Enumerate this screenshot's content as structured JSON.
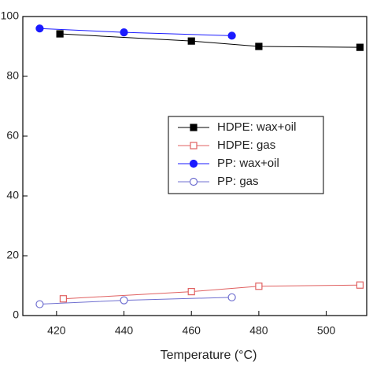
{
  "chart_data": {
    "type": "line",
    "x_label": "Temperature (°C)",
    "xlim": [
      410,
      512
    ],
    "xticks": [
      420,
      440,
      460,
      480,
      500
    ],
    "ylim": [
      0,
      100
    ],
    "yticks": [
      0,
      20,
      40,
      60,
      80,
      100
    ],
    "legend": "right",
    "series": [
      {
        "name": "HDPE: wax+oil",
        "color": "#000000",
        "marker": "filled-square",
        "x": [
          421,
          460,
          480,
          510
        ],
        "values": [
          94.2,
          91.8,
          90.0,
          89.7
        ]
      },
      {
        "name": "HDPE: gas",
        "color": "#e06060",
        "marker": "open-square",
        "x": [
          422,
          460,
          480,
          510
        ],
        "values": [
          5.6,
          8.0,
          9.8,
          10.2
        ]
      },
      {
        "name": "PP: wax+oil",
        "color": "#1a1aff",
        "marker": "filled-circle",
        "x": [
          415,
          440,
          472
        ],
        "values": [
          96.0,
          94.7,
          93.6
        ]
      },
      {
        "name": "PP: gas",
        "color": "#6f6fd0",
        "marker": "open-circle",
        "x": [
          415,
          440,
          472
        ],
        "values": [
          3.8,
          5.1,
          6.1
        ]
      }
    ]
  }
}
